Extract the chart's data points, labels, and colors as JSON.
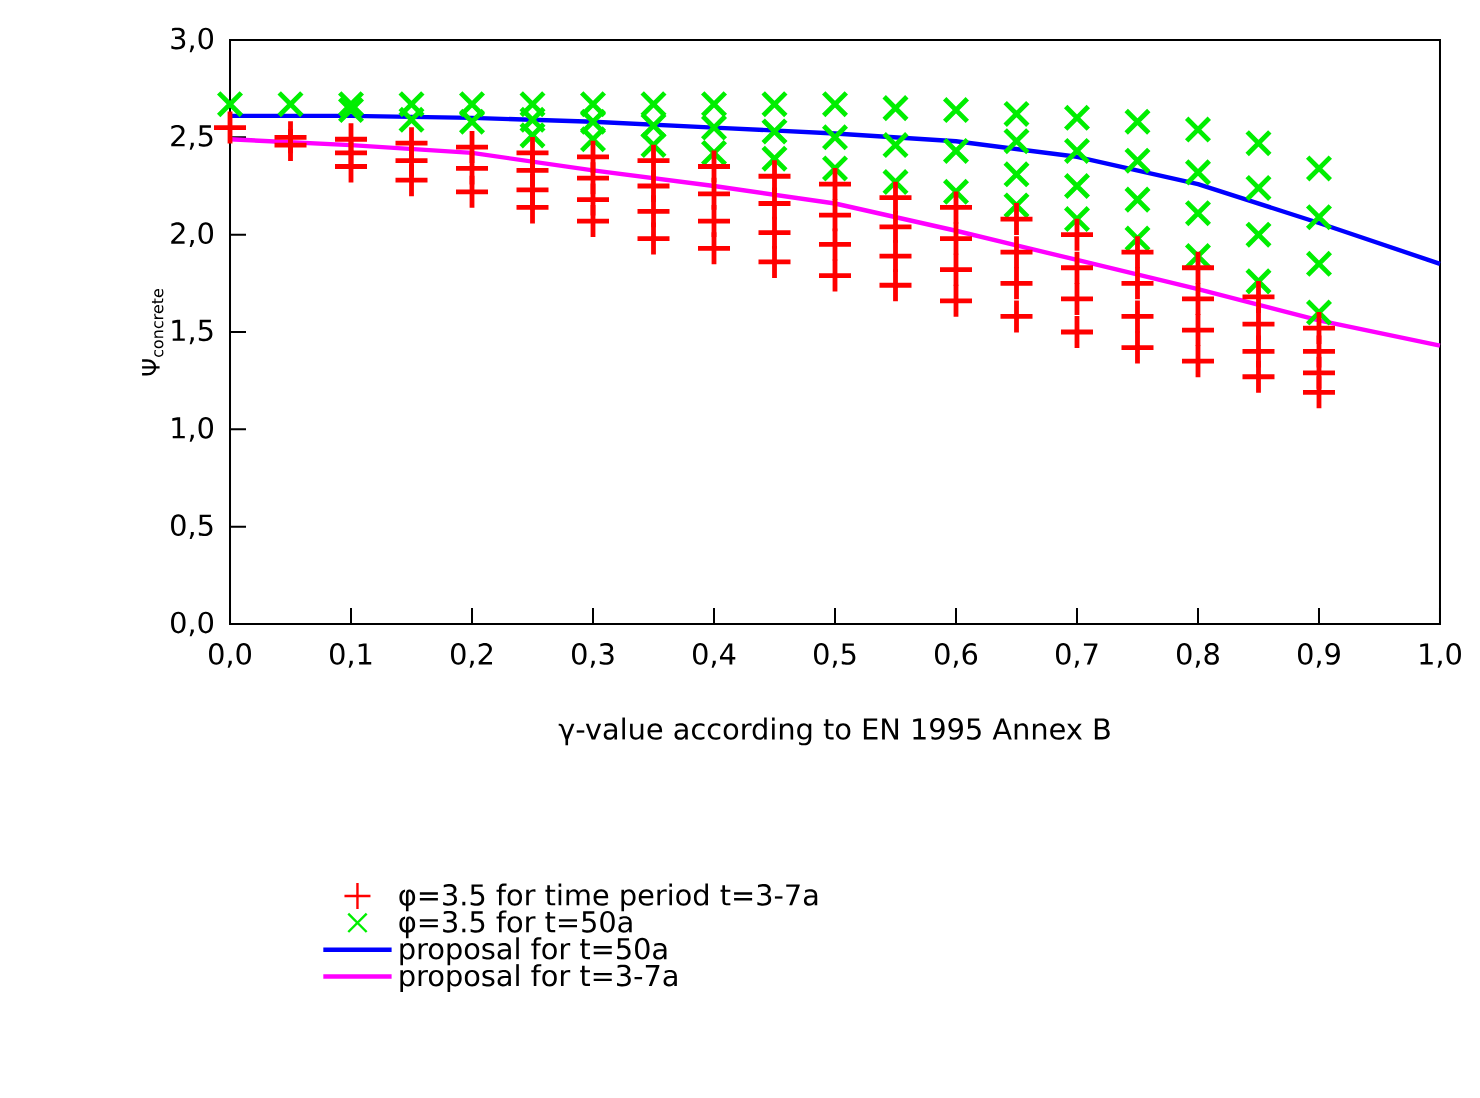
{
  "chart_data": {
    "type": "scatter",
    "xlabel": "γ-value according to EN 1995 Annex B",
    "ylabel": "Ψ$_{concrete}$",
    "xlim": [
      0,
      1
    ],
    "ylim": [
      0,
      3
    ],
    "xticks": [
      {
        "value": 0,
        "label": "0,0"
      },
      {
        "value": 0.1,
        "label": "0,1"
      },
      {
        "value": 0.2,
        "label": "0,2"
      },
      {
        "value": 0.3,
        "label": "0,3"
      },
      {
        "value": 0.4,
        "label": "0,4"
      },
      {
        "value": 0.5,
        "label": "0,5"
      },
      {
        "value": 0.6,
        "label": "0,6"
      },
      {
        "value": 0.7,
        "label": "0,7"
      },
      {
        "value": 0.8,
        "label": "0,8"
      },
      {
        "value": 0.9,
        "label": "0,9"
      },
      {
        "value": 1,
        "label": "1,0"
      }
    ],
    "yticks": [
      {
        "value": 0,
        "label": "0,0"
      },
      {
        "value": 0.5,
        "label": "0,5"
      },
      {
        "value": 1,
        "label": "1,0"
      },
      {
        "value": 1.5,
        "label": "1,5"
      },
      {
        "value": 2,
        "label": "2,0"
      },
      {
        "value": 2.5,
        "label": "2,5"
      },
      {
        "value": 3,
        "label": "3,0"
      }
    ],
    "grid": false,
    "legend": "bottom",
    "series": [
      {
        "name": "φ=3.5 for time period t=3-7a",
        "type": "scatter",
        "marker": "cross",
        "color": "#ff0000",
        "x": [
          0,
          0.05,
          0.05,
          0.1,
          0.1,
          0.1,
          0.15,
          0.15,
          0.15,
          0.2,
          0.2,
          0.2,
          0.25,
          0.25,
          0.25,
          0.25,
          0.3,
          0.3,
          0.3,
          0.3,
          0.35,
          0.35,
          0.35,
          0.35,
          0.4,
          0.4,
          0.4,
          0.4,
          0.45,
          0.45,
          0.45,
          0.45,
          0.5,
          0.5,
          0.5,
          0.5,
          0.55,
          0.55,
          0.55,
          0.55,
          0.6,
          0.6,
          0.6,
          0.6,
          0.65,
          0.65,
          0.65,
          0.65,
          0.7,
          0.7,
          0.7,
          0.7,
          0.75,
          0.75,
          0.75,
          0.75,
          0.8,
          0.8,
          0.8,
          0.8,
          0.85,
          0.85,
          0.85,
          0.85,
          0.9,
          0.9,
          0.9,
          0.9
        ],
        "values": [
          2.55,
          2.5,
          2.46,
          2.49,
          2.42,
          2.35,
          2.47,
          2.38,
          2.28,
          2.45,
          2.34,
          2.22,
          2.42,
          2.33,
          2.23,
          2.14,
          2.4,
          2.29,
          2.18,
          2.07,
          2.38,
          2.25,
          2.12,
          1.98,
          2.35,
          2.21,
          2.07,
          1.93,
          2.3,
          2.16,
          2.01,
          1.86,
          2.26,
          2.1,
          1.95,
          1.79,
          2.19,
          2.04,
          1.89,
          1.74,
          2.14,
          1.98,
          1.82,
          1.66,
          2.08,
          1.91,
          1.75,
          1.58,
          2.0,
          1.83,
          1.67,
          1.5,
          1.91,
          1.75,
          1.58,
          1.42,
          1.83,
          1.67,
          1.51,
          1.35,
          1.68,
          1.54,
          1.4,
          1.27,
          1.52,
          1.4,
          1.29,
          1.19
        ]
      },
      {
        "name": "φ=3.5 for  t=50a",
        "type": "scatter",
        "marker": "x",
        "color": "#00ee00",
        "x": [
          0,
          0.05,
          0.1,
          0.1,
          0.15,
          0.15,
          0.2,
          0.2,
          0.25,
          0.25,
          0.25,
          0.3,
          0.3,
          0.3,
          0.35,
          0.35,
          0.35,
          0.4,
          0.4,
          0.4,
          0.45,
          0.45,
          0.45,
          0.5,
          0.5,
          0.5,
          0.55,
          0.55,
          0.55,
          0.6,
          0.6,
          0.6,
          0.65,
          0.65,
          0.65,
          0.65,
          0.7,
          0.7,
          0.7,
          0.7,
          0.75,
          0.75,
          0.75,
          0.75,
          0.8,
          0.8,
          0.8,
          0.8,
          0.85,
          0.85,
          0.85,
          0.85,
          0.9,
          0.9,
          0.9,
          0.9
        ],
        "values": [
          2.67,
          2.67,
          2.67,
          2.64,
          2.67,
          2.59,
          2.67,
          2.58,
          2.67,
          2.59,
          2.51,
          2.67,
          2.58,
          2.49,
          2.67,
          2.56,
          2.46,
          2.67,
          2.55,
          2.42,
          2.67,
          2.53,
          2.39,
          2.67,
          2.5,
          2.34,
          2.65,
          2.46,
          2.27,
          2.64,
          2.43,
          2.22,
          2.62,
          2.48,
          2.31,
          2.15,
          2.6,
          2.43,
          2.25,
          2.08,
          2.58,
          2.38,
          2.18,
          1.98,
          2.54,
          2.32,
          2.11,
          1.89,
          2.47,
          2.24,
          2.0,
          1.76,
          2.34,
          2.09,
          1.85,
          1.6
        ]
      },
      {
        "name": "proposal for t=50a",
        "type": "line",
        "marker": "none",
        "color": "#0000ff",
        "x": [
          0,
          0.1,
          0.2,
          0.3,
          0.4,
          0.5,
          0.6,
          0.7,
          0.8,
          0.9,
          1.0
        ],
        "values": [
          2.61,
          2.61,
          2.6,
          2.58,
          2.55,
          2.52,
          2.48,
          2.4,
          2.26,
          2.06,
          1.85
        ]
      },
      {
        "name": "proposal for t=3-7a",
        "type": "line",
        "marker": "none",
        "color": "#ff00ff",
        "x": [
          0,
          0.1,
          0.2,
          0.3,
          0.4,
          0.5,
          0.6,
          0.7,
          0.8,
          0.9,
          1.0
        ],
        "values": [
          2.49,
          2.46,
          2.42,
          2.33,
          2.25,
          2.16,
          2.02,
          1.87,
          1.72,
          1.56,
          1.43
        ]
      }
    ]
  }
}
